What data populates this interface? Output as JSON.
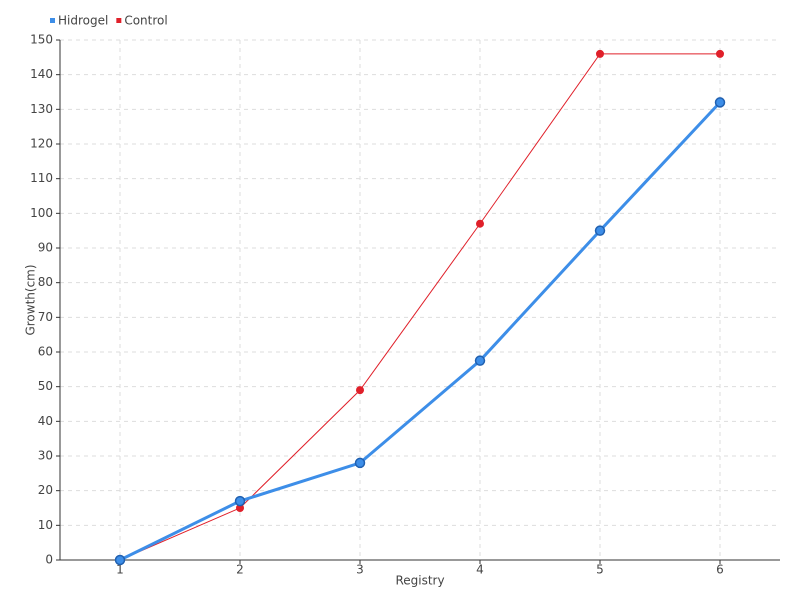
{
  "chart_data": {
    "type": "line",
    "x": [
      1,
      2,
      3,
      4,
      5,
      6
    ],
    "series": [
      {
        "name": "Hidrogel",
        "color": "#3d8ee8",
        "values": [
          0,
          17,
          28,
          57.5,
          95,
          132
        ]
      },
      {
        "name": "Control",
        "color": "#e0202a",
        "values": [
          0,
          15,
          49,
          97,
          146,
          146
        ]
      }
    ],
    "xlabel": "Registry",
    "ylabel": "Growth(cm)",
    "xlim": [
      0.5,
      6.5
    ],
    "xticks": [
      1,
      2,
      3,
      4,
      5,
      6
    ],
    "ylim": [
      0,
      150
    ],
    "yticks": [
      0,
      10,
      20,
      30,
      40,
      50,
      60,
      70,
      80,
      90,
      100,
      110,
      120,
      130,
      140,
      150
    ],
    "grid": true,
    "legend": "top-left"
  }
}
